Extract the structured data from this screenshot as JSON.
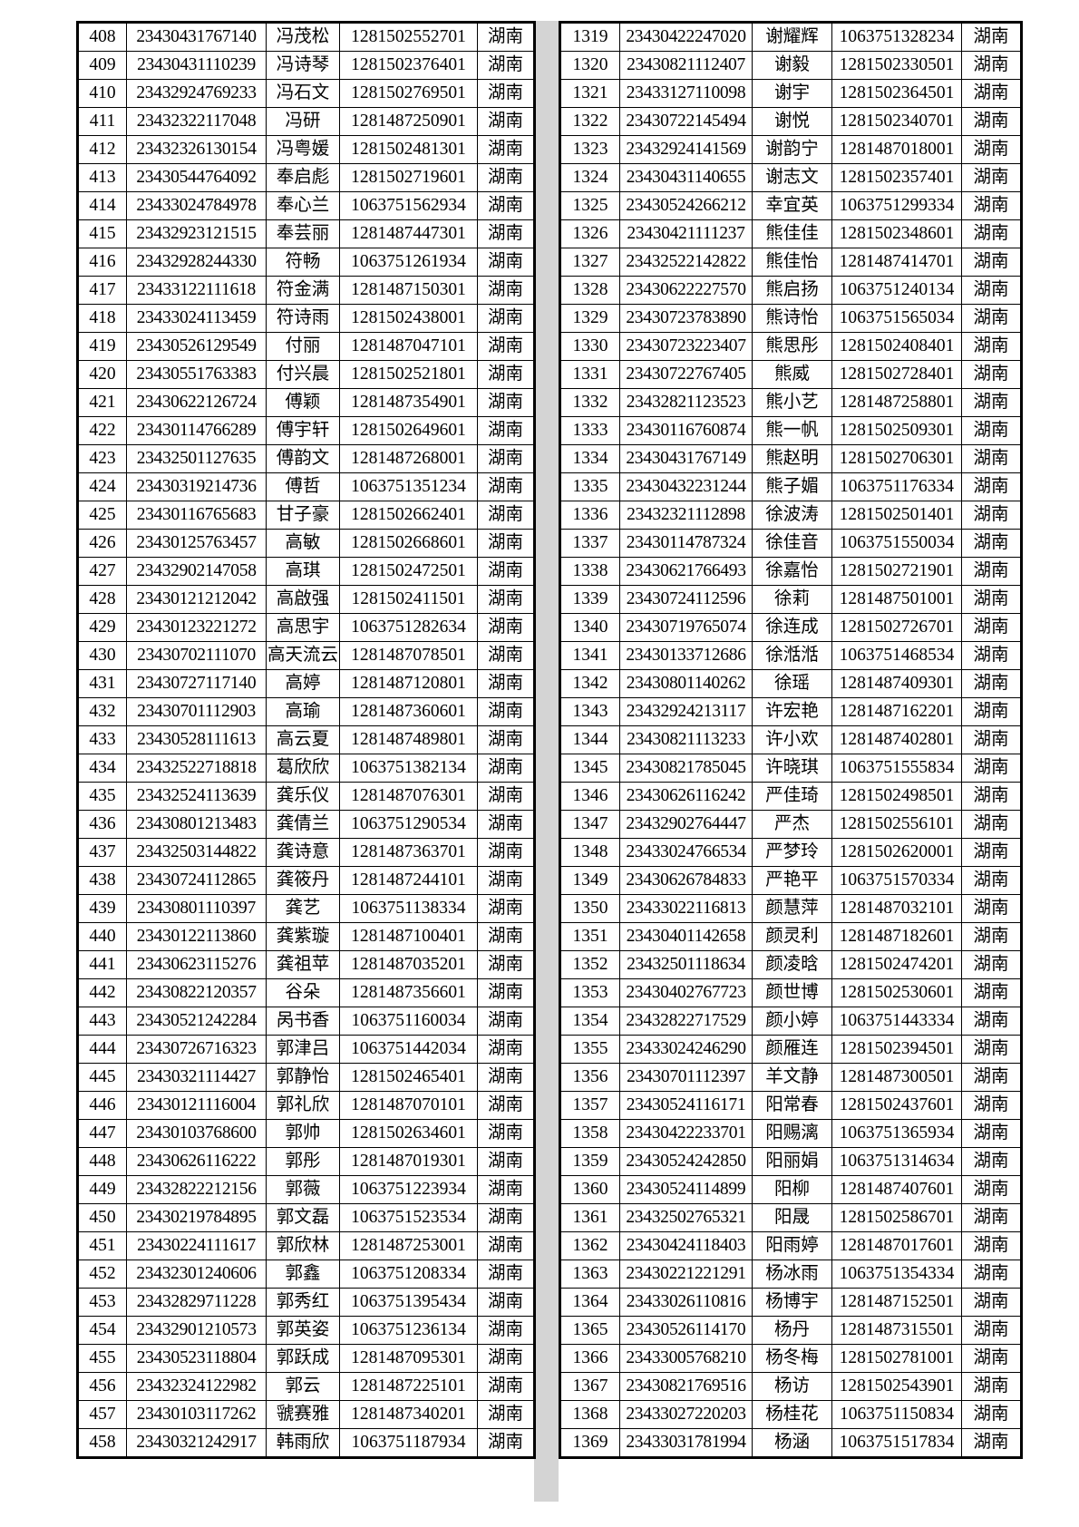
{
  "left_table": {
    "rows": [
      [
        "408",
        "23430431767140",
        "冯茂松",
        "1281502552701",
        "湖南"
      ],
      [
        "409",
        "23430431110239",
        "冯诗琴",
        "1281502376401",
        "湖南"
      ],
      [
        "410",
        "23432924769233",
        "冯石文",
        "1281502769501",
        "湖南"
      ],
      [
        "411",
        "23432322117048",
        "冯研",
        "1281487250901",
        "湖南"
      ],
      [
        "412",
        "23432326130154",
        "冯粤媛",
        "1281502481301",
        "湖南"
      ],
      [
        "413",
        "23430544764092",
        "奉启彪",
        "1281502719601",
        "湖南"
      ],
      [
        "414",
        "23433024784978",
        "奉心兰",
        "1063751562934",
        "湖南"
      ],
      [
        "415",
        "23432923121515",
        "奉芸丽",
        "1281487447301",
        "湖南"
      ],
      [
        "416",
        "23432928244330",
        "符畅",
        "1063751261934",
        "湖南"
      ],
      [
        "417",
        "23433122111618",
        "符金满",
        "1281487150301",
        "湖南"
      ],
      [
        "418",
        "23433024113459",
        "符诗雨",
        "1281502438001",
        "湖南"
      ],
      [
        "419",
        "23430526129549",
        "付丽",
        "1281487047101",
        "湖南"
      ],
      [
        "420",
        "23430551763383",
        "付兴晨",
        "1281502521801",
        "湖南"
      ],
      [
        "421",
        "23430622126724",
        "傅颖",
        "1281487354901",
        "湖南"
      ],
      [
        "422",
        "23430114766289",
        "傅宇轩",
        "1281502649601",
        "湖南"
      ],
      [
        "423",
        "23432501127635",
        "傅韵文",
        "1281487268001",
        "湖南"
      ],
      [
        "424",
        "23430319214736",
        "傅哲",
        "1063751351234",
        "湖南"
      ],
      [
        "425",
        "23430116765683",
        "甘子豪",
        "1281502662401",
        "湖南"
      ],
      [
        "426",
        "23430125763457",
        "高敏",
        "1281502668601",
        "湖南"
      ],
      [
        "427",
        "23432902147058",
        "高琪",
        "1281502472501",
        "湖南"
      ],
      [
        "428",
        "23430121212042",
        "高啟强",
        "1281502411501",
        "湖南"
      ],
      [
        "429",
        "23430123221272",
        "高思宇",
        "1063751282634",
        "湖南"
      ],
      [
        "430",
        "23430702111070",
        "高天流云",
        "1281487078501",
        "湖南"
      ],
      [
        "431",
        "23430727117140",
        "高婷",
        "1281487120801",
        "湖南"
      ],
      [
        "432",
        "23430701112903",
        "高瑜",
        "1281487360601",
        "湖南"
      ],
      [
        "433",
        "23430528111613",
        "高云夏",
        "1281487489801",
        "湖南"
      ],
      [
        "434",
        "23432522718818",
        "葛欣欣",
        "1063751382134",
        "湖南"
      ],
      [
        "435",
        "23432524113639",
        "龚乐仪",
        "1281487076301",
        "湖南"
      ],
      [
        "436",
        "23430801213483",
        "龚倩兰",
        "1063751290534",
        "湖南"
      ],
      [
        "437",
        "23432503144822",
        "龚诗意",
        "1281487363701",
        "湖南"
      ],
      [
        "438",
        "23430724112865",
        "龚筱丹",
        "1281487244101",
        "湖南"
      ],
      [
        "439",
        "23430801110397",
        "龚艺",
        "1063751138334",
        "湖南"
      ],
      [
        "440",
        "23430122113860",
        "龚紫璇",
        "1281487100401",
        "湖南"
      ],
      [
        "441",
        "23430623115276",
        "龚祖苹",
        "1281487035201",
        "湖南"
      ],
      [
        "442",
        "23430822120357",
        "谷朵",
        "1281487356601",
        "湖南"
      ],
      [
        "443",
        "23430521242284",
        "呙书香",
        "1063751160034",
        "湖南"
      ],
      [
        "444",
        "23430726716323",
        "郭津吕",
        "1063751442034",
        "湖南"
      ],
      [
        "445",
        "23430321114427",
        "郭静怡",
        "1281502465401",
        "湖南"
      ],
      [
        "446",
        "23430121116004",
        "郭礼欣",
        "1281487070101",
        "湖南"
      ],
      [
        "447",
        "23430103768600",
        "郭帅",
        "1281502634601",
        "湖南"
      ],
      [
        "448",
        "23430626116222",
        "郭彤",
        "1281487019301",
        "湖南"
      ],
      [
        "449",
        "23432822212156",
        "郭薇",
        "1063751223934",
        "湖南"
      ],
      [
        "450",
        "23430219784895",
        "郭文磊",
        "1063751523534",
        "湖南"
      ],
      [
        "451",
        "23430224111617",
        "郭欣林",
        "1281487253001",
        "湖南"
      ],
      [
        "452",
        "23432301240606",
        "郭鑫",
        "1063751208334",
        "湖南"
      ],
      [
        "453",
        "23432829711228",
        "郭秀红",
        "1063751395434",
        "湖南"
      ],
      [
        "454",
        "23432901210573",
        "郭英姿",
        "1063751236134",
        "湖南"
      ],
      [
        "455",
        "23430523118804",
        "郭跃成",
        "1281487095301",
        "湖南"
      ],
      [
        "456",
        "23432324122982",
        "郭云",
        "1281487225101",
        "湖南"
      ],
      [
        "457",
        "23430103117262",
        "虢赛雅",
        "1281487340201",
        "湖南"
      ],
      [
        "458",
        "23430321242917",
        "韩雨欣",
        "1063751187934",
        "湖南"
      ]
    ]
  },
  "right_table": {
    "rows": [
      [
        "1319",
        "23430422247020",
        "谢耀辉",
        "1063751328234",
        "湖南"
      ],
      [
        "1320",
        "23430821112407",
        "谢毅",
        "1281502330501",
        "湖南"
      ],
      [
        "1321",
        "23433127110098",
        "谢宇",
        "1281502364501",
        "湖南"
      ],
      [
        "1322",
        "23430722145494",
        "谢悦",
        "1281502340701",
        "湖南"
      ],
      [
        "1323",
        "23432924141569",
        "谢韵宁",
        "1281487018001",
        "湖南"
      ],
      [
        "1324",
        "23430431140655",
        "谢志文",
        "1281502357401",
        "湖南"
      ],
      [
        "1325",
        "23430524266212",
        "幸宜英",
        "1063751299334",
        "湖南"
      ],
      [
        "1326",
        "23430421111237",
        "熊佳佳",
        "1281502348601",
        "湖南"
      ],
      [
        "1327",
        "23432522142822",
        "熊佳怡",
        "1281487414701",
        "湖南"
      ],
      [
        "1328",
        "23430622227570",
        "熊启扬",
        "1063751240134",
        "湖南"
      ],
      [
        "1329",
        "23430723783890",
        "熊诗怡",
        "1063751565034",
        "湖南"
      ],
      [
        "1330",
        "23430723223407",
        "熊思彤",
        "1281502408401",
        "湖南"
      ],
      [
        "1331",
        "23430722767405",
        "熊威",
        "1281502728401",
        "湖南"
      ],
      [
        "1332",
        "23432821123523",
        "熊小艺",
        "1281487258801",
        "湖南"
      ],
      [
        "1333",
        "23430116760874",
        "熊一帆",
        "1281502509301",
        "湖南"
      ],
      [
        "1334",
        "23430431767149",
        "熊赵明",
        "1281502706301",
        "湖南"
      ],
      [
        "1335",
        "23430432231244",
        "熊子媚",
        "1063751176334",
        "湖南"
      ],
      [
        "1336",
        "23432321112898",
        "徐波涛",
        "1281502501401",
        "湖南"
      ],
      [
        "1337",
        "23430114787324",
        "徐佳音",
        "1063751550034",
        "湖南"
      ],
      [
        "1338",
        "23430621766493",
        "徐嘉怡",
        "1281502721901",
        "湖南"
      ],
      [
        "1339",
        "23430724112596",
        "徐莉",
        "1281487501001",
        "湖南"
      ],
      [
        "1340",
        "23430719765074",
        "徐连成",
        "1281502726701",
        "湖南"
      ],
      [
        "1341",
        "23430133712686",
        "徐湉湉",
        "1063751468534",
        "湖南"
      ],
      [
        "1342",
        "23430801140262",
        "徐瑶",
        "1281487409301",
        "湖南"
      ],
      [
        "1343",
        "23432924213117",
        "许宏艳",
        "1281487162201",
        "湖南"
      ],
      [
        "1344",
        "23430821113233",
        "许小欢",
        "1281487402801",
        "湖南"
      ],
      [
        "1345",
        "23430821785045",
        "许晓琪",
        "1063751555834",
        "湖南"
      ],
      [
        "1346",
        "23430626116242",
        "严佳琦",
        "1281502498501",
        "湖南"
      ],
      [
        "1347",
        "23432902764447",
        "严杰",
        "1281502556101",
        "湖南"
      ],
      [
        "1348",
        "23433024766534",
        "严梦玲",
        "1281502620001",
        "湖南"
      ],
      [
        "1349",
        "23430626784833",
        "严艳平",
        "1063751570334",
        "湖南"
      ],
      [
        "1350",
        "23433022116813",
        "颜慧萍",
        "1281487032101",
        "湖南"
      ],
      [
        "1351",
        "23430401142658",
        "颜灵利",
        "1281487182601",
        "湖南"
      ],
      [
        "1352",
        "23432501118634",
        "颜凌晗",
        "1281502474201",
        "湖南"
      ],
      [
        "1353",
        "23430402767723",
        "颜世博",
        "1281502530601",
        "湖南"
      ],
      [
        "1354",
        "23432822717529",
        "颜小婷",
        "1063751443334",
        "湖南"
      ],
      [
        "1355",
        "23433024246290",
        "颜雁连",
        "1281502394501",
        "湖南"
      ],
      [
        "1356",
        "23430701112397",
        "羊文静",
        "1281487300501",
        "湖南"
      ],
      [
        "1357",
        "23430524116171",
        "阳常春",
        "1281502437601",
        "湖南"
      ],
      [
        "1358",
        "23430422233701",
        "阳赐漓",
        "1063751365934",
        "湖南"
      ],
      [
        "1359",
        "23430524242850",
        "阳丽娟",
        "1063751314634",
        "湖南"
      ],
      [
        "1360",
        "23430524114899",
        "阳柳",
        "1281487407601",
        "湖南"
      ],
      [
        "1361",
        "23432502765321",
        "阳晟",
        "1281502586701",
        "湖南"
      ],
      [
        "1362",
        "23430424118403",
        "阳雨婷",
        "1281487017601",
        "湖南"
      ],
      [
        "1363",
        "23430221221291",
        "杨冰雨",
        "1063751354334",
        "湖南"
      ],
      [
        "1364",
        "23433026110816",
        "杨博宇",
        "1281487152501",
        "湖南"
      ],
      [
        "1365",
        "23430526114170",
        "杨丹",
        "1281487315501",
        "湖南"
      ],
      [
        "1366",
        "23433005768210",
        "杨冬梅",
        "1281502781001",
        "湖南"
      ],
      [
        "1367",
        "23430821769516",
        "杨访",
        "1281502543901",
        "湖南"
      ],
      [
        "1368",
        "23433027220203",
        "杨桂花",
        "1063751150834",
        "湖南"
      ],
      [
        "1369",
        "23433031781994",
        "杨涵",
        "1063751517834",
        "湖南"
      ]
    ]
  }
}
